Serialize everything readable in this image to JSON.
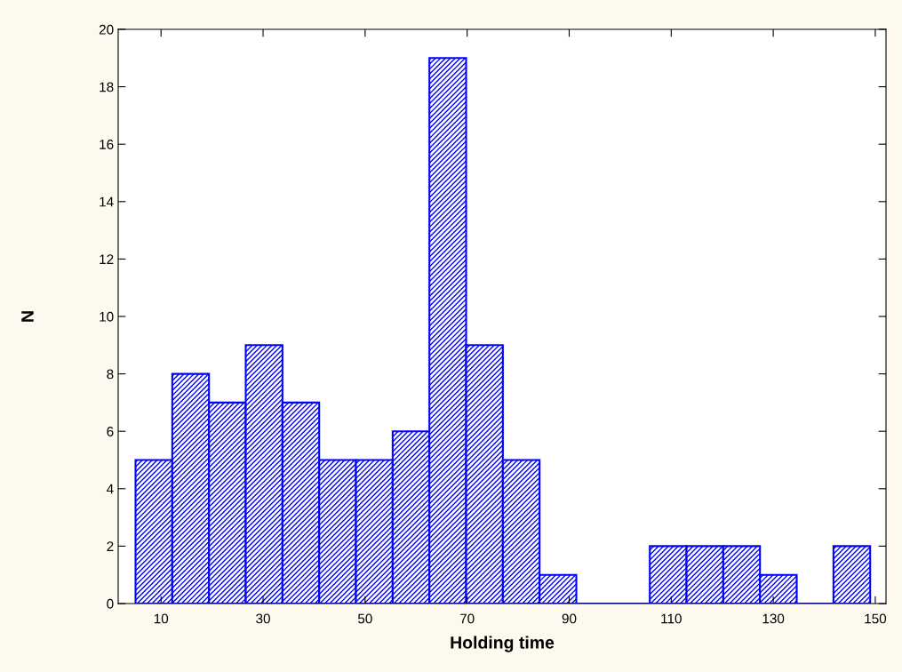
{
  "chart_data": {
    "type": "histogram",
    "xlabel": "Holding time",
    "ylabel": "N",
    "bins": [
      5,
      12.2,
      19.4,
      26.6,
      33.8,
      41,
      48.2,
      55.4,
      62.6,
      69.8,
      77,
      84.2,
      91.4,
      98.6,
      105.8,
      113,
      120.2,
      127.4,
      134.6,
      141.8,
      149
    ],
    "values": [
      5,
      8,
      7,
      9,
      7,
      5,
      5,
      6,
      19,
      9,
      5,
      1,
      0,
      0,
      2,
      2,
      2,
      1,
      0,
      2
    ],
    "color": "#0000ff",
    "xlim": [
      1.6,
      152.1
    ],
    "xticks": [
      10,
      30,
      50,
      70,
      90,
      110,
      130,
      150
    ],
    "ylim": [
      0,
      20
    ],
    "yticks": [
      0,
      2,
      4,
      6,
      8,
      10,
      12,
      14,
      16,
      18,
      20
    ],
    "grid": false
  }
}
